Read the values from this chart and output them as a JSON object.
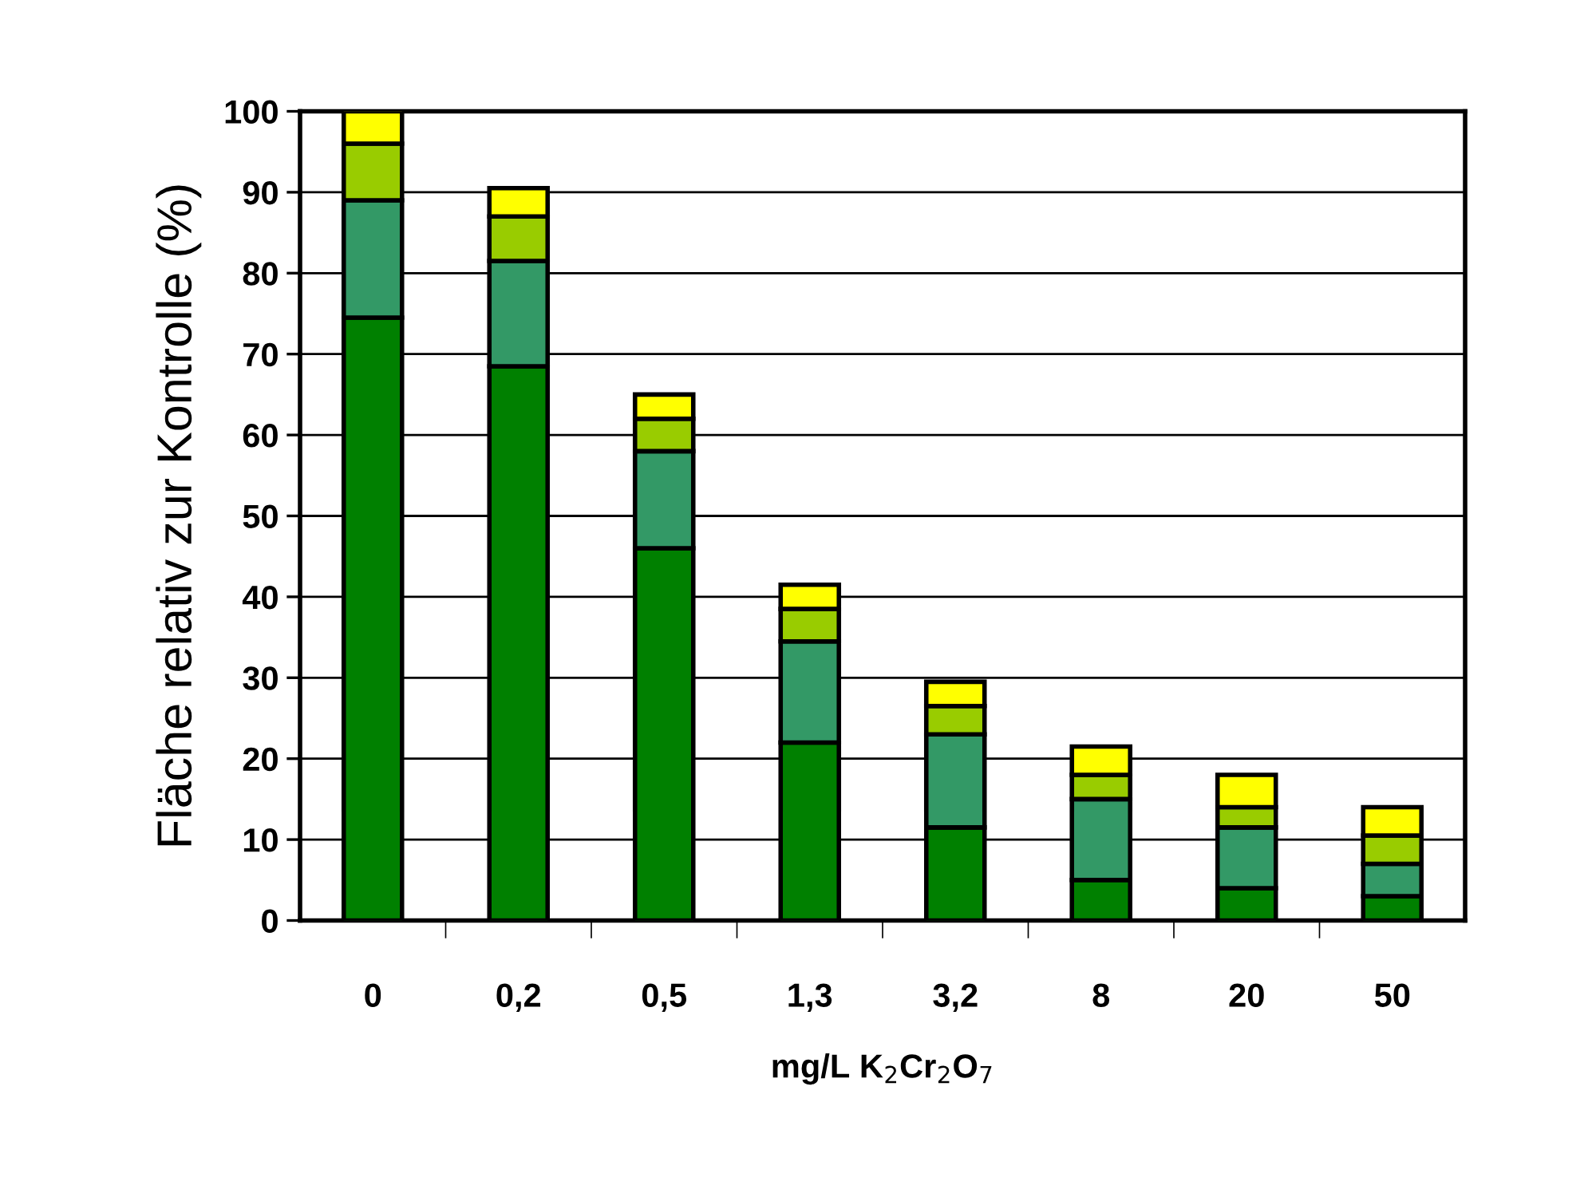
{
  "chart_data": {
    "type": "bar",
    "stacked": true,
    "xlabel": "mg/L K$_{2}$Cr$_{2}$O$_{7}$",
    "ylabel": "Fläche relativ zur Kontrolle (%)",
    "categories": [
      "0",
      "0,2",
      "0,5",
      "1,3",
      "3,2",
      "8",
      "20",
      "50"
    ],
    "series": [
      {
        "color": "#008000",
        "values": [
          74.5,
          68.5,
          46,
          22,
          11.5,
          5,
          4,
          3
        ]
      },
      {
        "color": "#339966",
        "values": [
          14.5,
          13,
          12,
          12.5,
          11.5,
          10,
          7.5,
          4
        ]
      },
      {
        "color": "#99cc00",
        "values": [
          7,
          5.5,
          4,
          4,
          3.5,
          3,
          2.5,
          3.5
        ]
      },
      {
        "color": "#ffff00",
        "values": [
          4,
          3.5,
          3,
          3,
          3,
          3.5,
          4,
          3.5
        ]
      }
    ],
    "ylim": [
      0,
      100
    ],
    "yticks": [
      0,
      10,
      20,
      30,
      40,
      50,
      60,
      70,
      80,
      90,
      100
    ],
    "grid": "y"
  }
}
